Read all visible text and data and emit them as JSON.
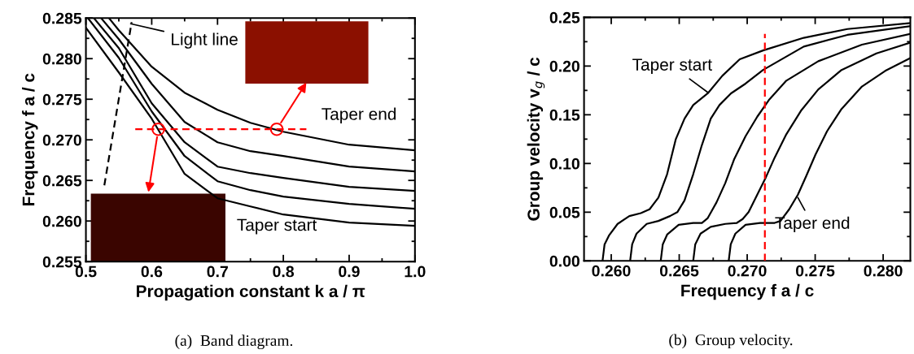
{
  "chart_data": [
    {
      "type": "line",
      "xlabel": "Propagation constant k a / π",
      "ylabel": "Frequency f a / c",
      "xlim": [
        0.5,
        1.0
      ],
      "xticks": [
        0.5,
        0.6,
        0.7,
        0.8,
        0.9,
        {
          "value": 1.0,
          "label": "1.0"
        }
      ],
      "ylim": [
        0.255,
        0.285
      ],
      "yticks": [
        0.255,
        {
          "value": 0.26,
          "label": "0.260"
        },
        0.265,
        {
          "value": 0.27,
          "label": "0.270"
        },
        0.275,
        {
          "value": 0.28,
          "label": "0.280"
        },
        0.285
      ],
      "grid": false,
      "marker": "none",
      "line_style": "solid",
      "series": [
        {
          "color": "#000000",
          "x": [
            0.5,
            0.55,
            0.6,
            0.65,
            0.7,
            0.75,
            0.8,
            0.9,
            1.0
          ],
          "values": [
            0.2838,
            0.2783,
            0.2726,
            0.2658,
            0.2628,
            0.2618,
            0.2608,
            0.2598,
            0.2594
          ]
        },
        {
          "color": "#000000",
          "x": [
            0.503,
            0.55,
            0.6,
            0.65,
            0.7,
            0.75,
            0.8,
            0.9,
            1.0
          ],
          "values": [
            0.285,
            0.2801,
            0.2735,
            0.268,
            0.2649,
            0.2638,
            0.263,
            0.2621,
            0.2615
          ]
        },
        {
          "color": "#000000",
          "x": [
            0.512,
            0.55,
            0.6,
            0.65,
            0.7,
            0.75,
            0.8,
            0.9,
            1.0
          ],
          "values": [
            0.285,
            0.2813,
            0.2745,
            0.2697,
            0.2667,
            0.2659,
            0.2653,
            0.2642,
            0.2637
          ]
        },
        {
          "color": "#000000",
          "x": [
            0.523,
            0.55,
            0.6,
            0.65,
            0.7,
            0.75,
            0.8,
            0.9,
            1.0
          ],
          "values": [
            0.285,
            0.2824,
            0.2769,
            0.2722,
            0.2697,
            0.2686,
            0.268,
            0.2667,
            0.2661
          ]
        },
        {
          "color": "#000000",
          "x": [
            0.535,
            0.55,
            0.6,
            0.65,
            0.7,
            0.75,
            0.8,
            0.9,
            1.0
          ],
          "values": [
            0.285,
            0.2835,
            0.279,
            0.2758,
            0.2737,
            0.2721,
            0.271,
            0.2694,
            0.2687
          ]
        },
        {
          "color": "#000000",
          "line_style": "dashed",
          "x": [
            0.528,
            0.5695
          ],
          "values": [
            0.2644,
            0.2845
          ]
        },
        {
          "color": "#ff0000",
          "line_style": "dashed",
          "x": [
            0.575,
            0.835
          ],
          "values": [
            0.2713,
            0.2713
          ]
        },
        {
          "type": "scatter",
          "marker": "circle",
          "color": "#ff0000",
          "x": [
            0.61,
            0.79
          ],
          "values": [
            0.2713,
            0.2713
          ]
        }
      ],
      "annotations": [
        {
          "text": "Light line",
          "x": 0.568,
          "y": 0.2843
        },
        "Taper end",
        "Taper start",
        "(a)  Band diagram."
      ]
    },
    {
      "type": "line",
      "xlabel": "Frequency f a / c",
      "ylabel": "Group velocity v$_{g}$ / c",
      "xlim": [
        0.258,
        0.282
      ],
      "xticks": [
        {
          "value": 0.26,
          "label": "0.260"
        },
        0.265,
        {
          "value": 0.27,
          "label": "0.270"
        },
        0.275,
        {
          "value": 0.28,
          "label": "0.280"
        }
      ],
      "ylim": [
        0,
        0.25
      ],
      "yticks": [
        {
          "value": 0,
          "label": "0.00"
        },
        0.05,
        {
          "value": 0.1,
          "label": "0.10"
        },
        0.15,
        {
          "value": 0.2,
          "label": "0.20"
        },
        0.25
      ],
      "grid": false,
      "marker": "none",
      "line_style": "solid",
      "series": [
        {
          "color": "#000000",
          "x": [
            0.25936,
            0.25951,
            0.25983,
            0.26047,
            0.26133,
            0.26218,
            0.26282,
            0.26347,
            0.26411,
            0.26475,
            0.26539,
            0.26603,
            0.2671,
            0.26817,
            0.26945,
            0.27117,
            0.27416,
            0.27737,
            0.28197
          ],
          "values": [
            0,
            0.017,
            0.026,
            0.038,
            0.046,
            0.049,
            0.053,
            0.065,
            0.089,
            0.125,
            0.146,
            0.16,
            0.172,
            0.19,
            0.207,
            0.216,
            0.229,
            0.238,
            0.244
          ]
        },
        {
          "color": "#000000",
          "x": [
            0.26139,
            0.26154,
            0.26186,
            0.26261,
            0.26347,
            0.26432,
            0.26486,
            0.26539,
            0.26603,
            0.26667,
            0.26732,
            0.26796,
            0.26881,
            0.26988,
            0.27117,
            0.27416,
            0.27737,
            0.28197
          ],
          "values": [
            0,
            0.017,
            0.028,
            0.038,
            0.041,
            0.046,
            0.05,
            0.062,
            0.089,
            0.119,
            0.146,
            0.16,
            0.172,
            0.182,
            0.196,
            0.22,
            0.232,
            0.241
          ]
        },
        {
          "color": "#000000",
          "x": [
            0.26364,
            0.26379,
            0.26411,
            0.26496,
            0.26603,
            0.26667,
            0.2671,
            0.26774,
            0.26839,
            0.26903,
            0.26988,
            0.27074,
            0.27159,
            0.27288,
            0.27523,
            0.27844,
            0.28197
          ],
          "values": [
            0,
            0.017,
            0.027,
            0.037,
            0.039,
            0.039,
            0.044,
            0.06,
            0.08,
            0.104,
            0.128,
            0.148,
            0.165,
            0.185,
            0.205,
            0.222,
            0.233
          ]
        },
        {
          "color": "#000000",
          "x": [
            0.26603,
            0.26618,
            0.26657,
            0.26732,
            0.26839,
            0.26924,
            0.26967,
            0.2701,
            0.27074,
            0.27138,
            0.27202,
            0.27288,
            0.27395,
            0.27523,
            0.27694,
            0.27951,
            0.28197
          ],
          "values": [
            0,
            0.017,
            0.028,
            0.035,
            0.038,
            0.039,
            0.043,
            0.05,
            0.068,
            0.086,
            0.106,
            0.13,
            0.154,
            0.176,
            0.196,
            0.213,
            0.224
          ]
        },
        {
          "color": "#000000",
          "x": [
            0.26864,
            0.26879,
            0.26913,
            0.26988,
            0.27095,
            0.27202,
            0.27245,
            0.27309,
            0.27373,
            0.27437,
            0.27502,
            0.27587,
            0.27694,
            0.27844,
            0.28015,
            0.28197
          ],
          "values": [
            0,
            0.017,
            0.028,
            0.037,
            0.039,
            0.039,
            0.041,
            0.053,
            0.068,
            0.088,
            0.109,
            0.133,
            0.156,
            0.179,
            0.195,
            0.208
          ]
        },
        {
          "color": "#ff0000",
          "line_style": "dashed",
          "x": [
            0.2713,
            0.2713
          ],
          "values": [
            0,
            0.233
          ]
        }
      ],
      "annotations": [
        {
          "text": "Taper start",
          "x": 0.2671,
          "y": 0.173
        },
        {
          "text": "Taper end",
          "x": 0.27373,
          "y": 0.065
        },
        "(b)  Group velocity."
      ]
    }
  ]
}
